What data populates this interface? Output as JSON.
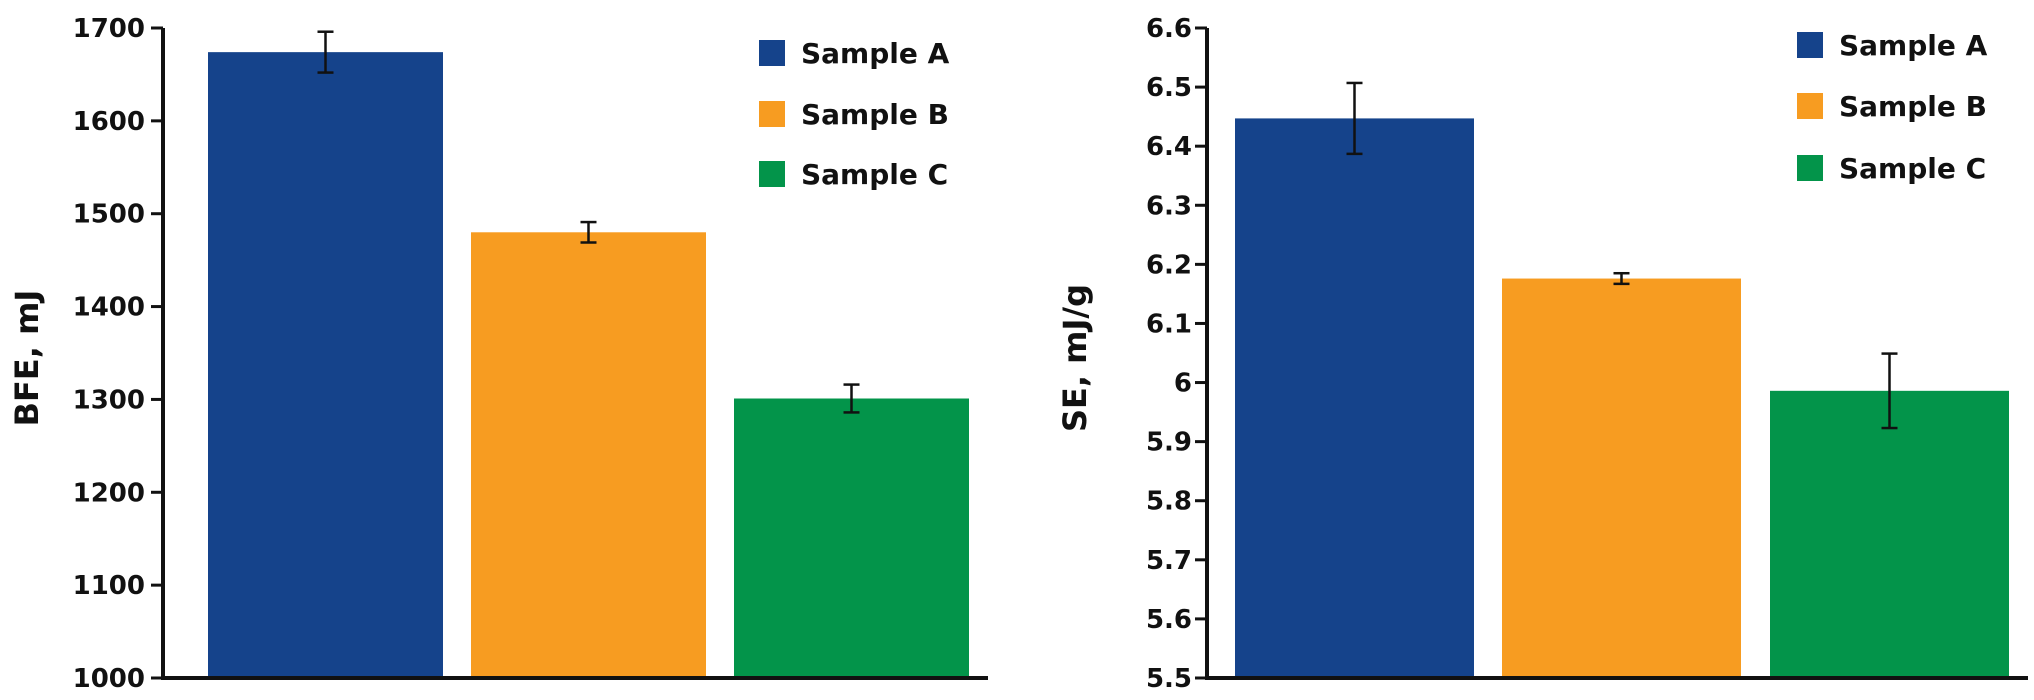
{
  "chart_data": [
    {
      "type": "bar",
      "title": "",
      "xlabel": "",
      "ylabel": "BFE, mJ",
      "ylim": [
        1000,
        1700
      ],
      "yticks": [
        "1000",
        "1100",
        "1200",
        "1300",
        "1400",
        "1500",
        "1600",
        "1700"
      ],
      "grid": false,
      "legend_position": "top-right",
      "categories": [
        "Sample A",
        "Sample B",
        "Sample C"
      ],
      "series": [
        {
          "name": "Sample A",
          "value": 1674,
          "error": 22,
          "color": "#15438b"
        },
        {
          "name": "Sample B",
          "value": 1480,
          "error": 11,
          "color": "#f79c21"
        },
        {
          "name": "Sample C",
          "value": 1301,
          "error": 15,
          "color": "#03944a"
        }
      ]
    },
    {
      "type": "bar",
      "title": "",
      "xlabel": "",
      "ylabel": "SE, mJ/g",
      "ylim": [
        5.5,
        6.6
      ],
      "yticks": [
        "5.5",
        "5.6",
        "5.7",
        "5.8",
        "5.9",
        "6",
        "6.1",
        "6.2",
        "6.3",
        "6.4",
        "6.5",
        "6.6"
      ],
      "grid": false,
      "legend_position": "top-right",
      "categories": [
        "Sample A",
        "Sample B",
        "Sample C"
      ],
      "series": [
        {
          "name": "Sample A",
          "value": 6.447,
          "error": 0.06,
          "color": "#15438b"
        },
        {
          "name": "Sample B",
          "value": 6.176,
          "error": 0.009,
          "color": "#f79c21"
        },
        {
          "name": "Sample C",
          "value": 5.986,
          "error": 0.063,
          "color": "#03944a"
        }
      ]
    }
  ]
}
